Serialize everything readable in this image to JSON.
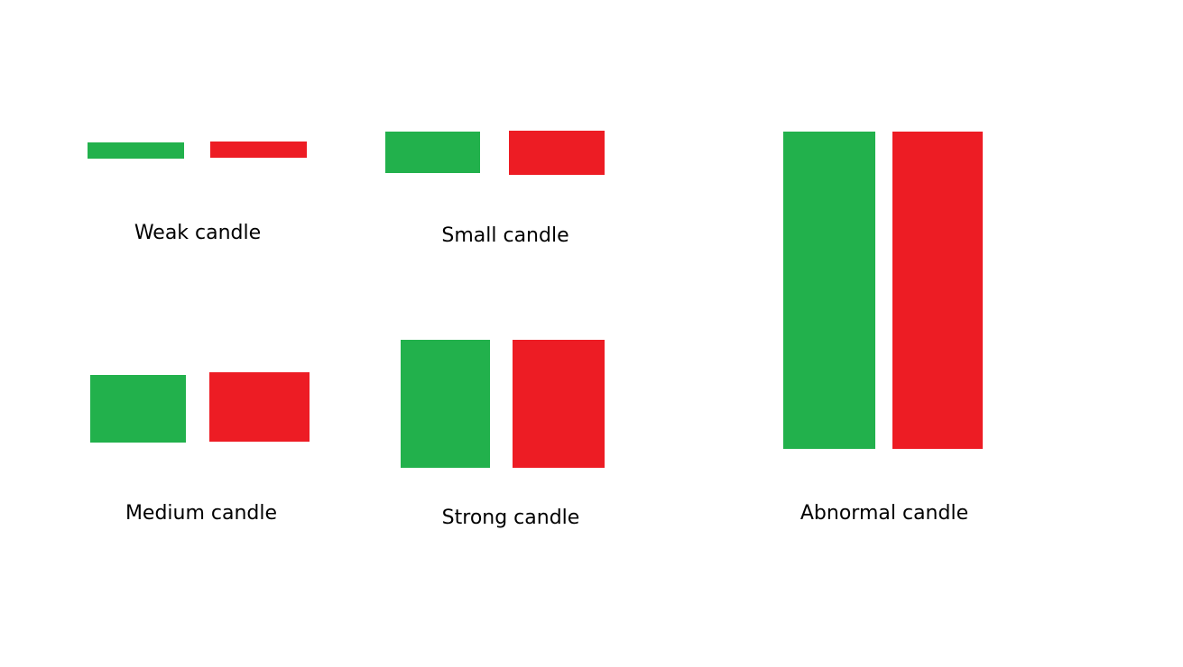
{
  "colors": {
    "bullish": "#22b14c",
    "bearish": "#ed1c24",
    "background": "#ffffff",
    "text": "#000000"
  },
  "groups": [
    {
      "label": "Weak candle"
    },
    {
      "label": "Small candle"
    },
    {
      "label": "Medium candle"
    },
    {
      "label": "Strong candle"
    },
    {
      "label": "Abnormal candle"
    }
  ]
}
